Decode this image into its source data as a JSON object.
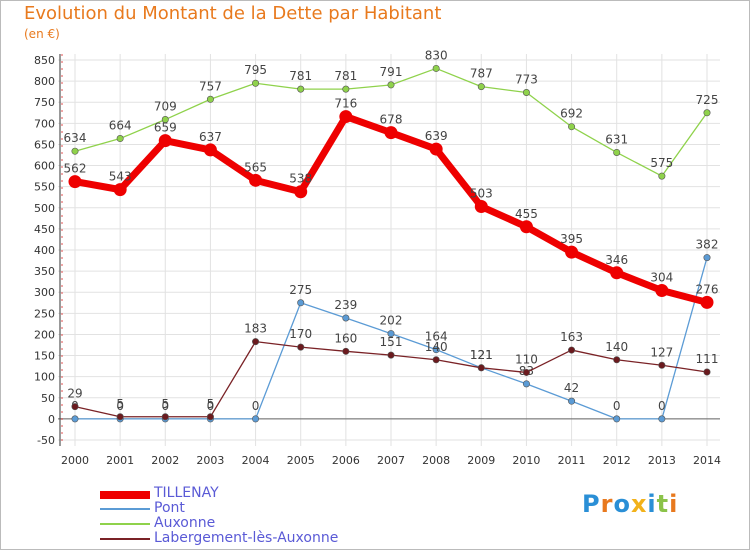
{
  "title": "Evolution du Montant de la Dette par Habitant",
  "unit": "(en €)",
  "logo": {
    "text": "Proxiti",
    "colors": [
      "#2a8fd6",
      "#e8791e",
      "#2a8fd6",
      "#f2b21b",
      "#2a8fd6",
      "#8bc34a",
      "#e8791e"
    ]
  },
  "chart_data": {
    "type": "line",
    "categories": [
      "2000",
      "2001",
      "2002",
      "2003",
      "2004",
      "2005",
      "2006",
      "2007",
      "2008",
      "2009",
      "2010",
      "2011",
      "2012",
      "2013",
      "2014"
    ],
    "ylim": [
      -50,
      850
    ],
    "yticks": [
      -50,
      0,
      50,
      100,
      150,
      200,
      250,
      300,
      350,
      400,
      450,
      500,
      550,
      600,
      650,
      700,
      750,
      800,
      850
    ],
    "grid": true,
    "legend_position": "bottom-left",
    "series": [
      {
        "name": "TILLENAY",
        "color": "#ee0000",
        "values": [
          562,
          543,
          659,
          637,
          565,
          538,
          716,
          678,
          639,
          503,
          455,
          395,
          346,
          304,
          276
        ]
      },
      {
        "name": "Pont",
        "color": "#5b9bd5",
        "values": [
          0,
          0,
          0,
          0,
          0,
          275,
          239,
          202,
          164,
          121,
          83,
          42,
          0,
          0,
          382
        ]
      },
      {
        "name": "Auxonne",
        "color": "#8fd24b",
        "values": [
          634,
          664,
          709,
          757,
          795,
          781,
          781,
          791,
          830,
          787,
          773,
          692,
          631,
          575,
          725
        ]
      },
      {
        "name": "Labergement-lès-Auxonne",
        "color": "#7a2226",
        "values": [
          29,
          5,
          5,
          5,
          183,
          170,
          160,
          151,
          140,
          121,
          110,
          163,
          140,
          127,
          111
        ]
      }
    ]
  }
}
